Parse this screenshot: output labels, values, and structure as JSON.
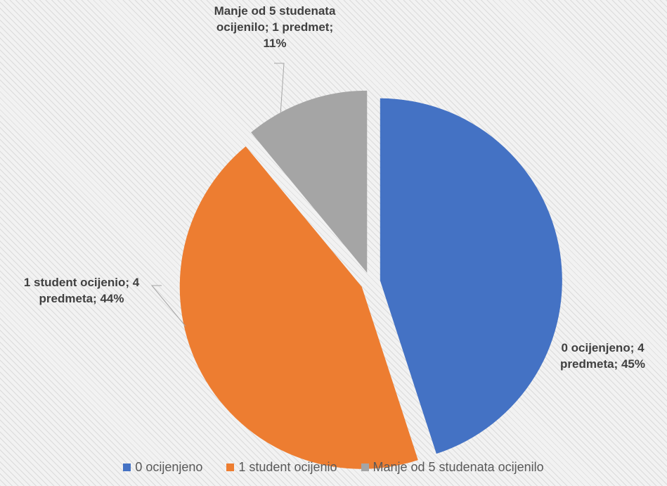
{
  "chart_data": {
    "type": "pie",
    "title": "",
    "categories": [
      "0 ocijenjeno",
      "1 student ocijenio",
      "Manje od 5 studenata ocijenilo"
    ],
    "values": [
      4,
      4,
      1
    ],
    "percents": [
      45,
      44,
      11
    ],
    "colors": [
      "#4472c4",
      "#ed7d31",
      "#a5a5a5"
    ],
    "exploded": true,
    "data_labels": [
      "0 ocijenjeno; 4\npredmeta; 45%",
      "1 student ocijenio; 4\npredmeta; 44%",
      "Manje od 5 studenata\nocijenilo; 1 predmet;\n11%"
    ],
    "legend": {
      "position": "bottom",
      "entries": [
        "0 ocijenjeno",
        "1 student ocijenio",
        "Manje od 5 studenata ocijenilo"
      ]
    }
  }
}
